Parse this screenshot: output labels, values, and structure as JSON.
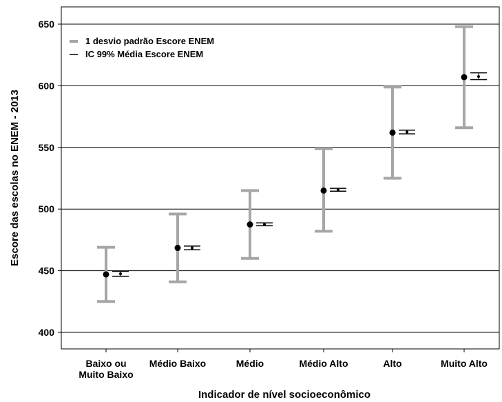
{
  "chart_data": {
    "type": "error-bar",
    "xlabel": "Indicador de nível socioeconômico",
    "ylabel": "Escore das escolas no ENEM - 2013",
    "ylim": [
      385,
      665
    ],
    "yticks": [
      400,
      450,
      500,
      550,
      600,
      650
    ],
    "grid": "horizontal",
    "categories": [
      [
        "Baixo ou",
        "Muito Baixo"
      ],
      [
        "Médio Baixo"
      ],
      [
        "Médio"
      ],
      [
        "Médio Alto"
      ],
      [
        "Alto"
      ],
      [
        "Muito Alto"
      ]
    ],
    "legend_position": "top-left",
    "series": [
      {
        "name": "1 desvio padrão Escore ENEM",
        "color": "#a6a6a6",
        "mean": [
          447,
          468.5,
          487.5,
          515,
          562,
          607
        ],
        "low": [
          425,
          441,
          460,
          482,
          525,
          566
        ],
        "high": [
          469,
          496,
          515,
          549,
          599,
          648
        ]
      },
      {
        "name": "IC 99% Média Escore ENEM",
        "color": "#000000",
        "mean": [
          447.5,
          468.5,
          487.5,
          515.5,
          562.5,
          607.5
        ],
        "low": [
          445.5,
          467,
          486.5,
          514.5,
          561,
          605
        ],
        "high": [
          449.5,
          470,
          488.8,
          516.8,
          564,
          610.5
        ]
      }
    ]
  }
}
